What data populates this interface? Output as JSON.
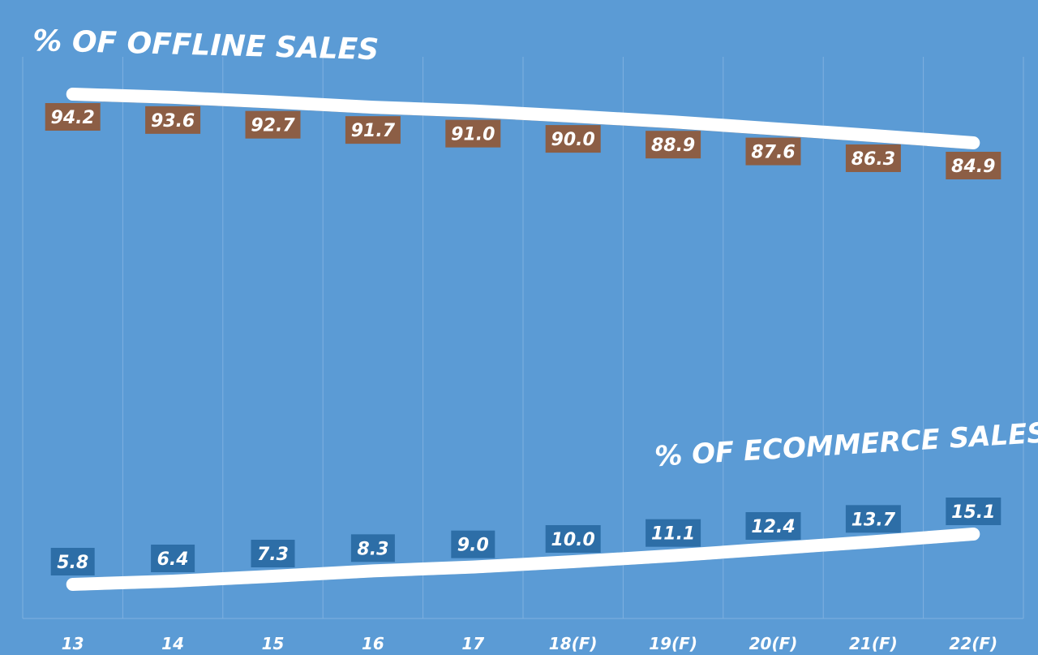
{
  "chart_data": {
    "type": "line",
    "categories": [
      "13",
      "14",
      "15",
      "16",
      "17",
      "18(F)",
      "19(F)",
      "20(F)",
      "21(F)",
      "22(F)"
    ],
    "series": [
      {
        "name": "% OF OFFLINE SALES",
        "values": [
          94.2,
          93.6,
          92.7,
          91.7,
          91.0,
          90.0,
          88.9,
          87.6,
          86.3,
          84.9
        ],
        "labels": [
          "94.2",
          "93.6",
          "92.7",
          "91.7",
          "91.0",
          "90.0",
          "88.9",
          "87.6",
          "86.3",
          "84.9"
        ],
        "label_color": "#8c5e45"
      },
      {
        "name": "% OF ECOMMERCE SALES",
        "values": [
          5.8,
          6.4,
          7.3,
          8.3,
          9.0,
          10.0,
          11.1,
          12.4,
          13.7,
          15.1
        ],
        "labels": [
          "5.8",
          "6.4",
          "7.3",
          "8.3",
          "9.0",
          "10.0",
          "11.1",
          "12.4",
          "13.7",
          "15.1"
        ],
        "label_color": "#2d6ea7"
      }
    ],
    "title": "",
    "xlabel": "",
    "ylabel": "",
    "grid": "vertical",
    "line_color": "#ffffff",
    "gridline_color": "#7fb0e0"
  }
}
